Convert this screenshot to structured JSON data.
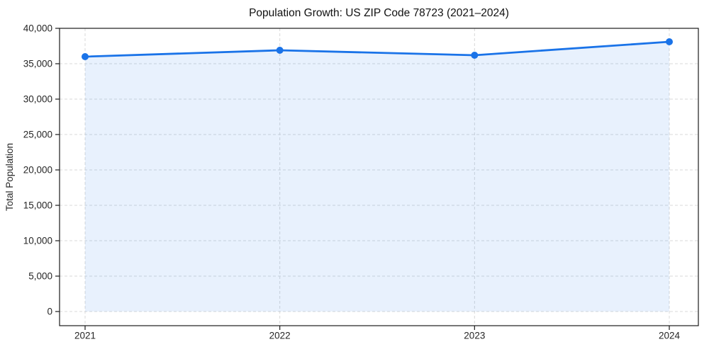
{
  "chart_data": {
    "type": "area",
    "title": "Population Growth: US ZIP Code 78723 (2021–2024)",
    "xlabel": "",
    "ylabel": "Total Population",
    "categories": [
      "2021",
      "2022",
      "2023",
      "2024"
    ],
    "series": [
      {
        "name": "Total Population",
        "values": [
          36000,
          36900,
          36200,
          38100
        ]
      }
    ],
    "ylim": [
      0,
      40000
    ],
    "yticks": [
      0,
      5000,
      10000,
      15000,
      20000,
      25000,
      30000,
      35000,
      40000
    ],
    "ytick_labels": [
      "0",
      "5,000",
      "10,000",
      "15,000",
      "20,000",
      "25,000",
      "30,000",
      "35,000",
      "40,000"
    ],
    "grid": true,
    "grid_style": "dashed",
    "legend_position": "none",
    "marker": "circle",
    "colors": {
      "line": "#1a73e8",
      "marker": "#1a73e8",
      "fill": "#1a73e8",
      "fill_opacity": 0.1,
      "grid": "#d8d8d8",
      "spine": "#1a1a1a",
      "tick_text": "#262626",
      "title_text": "#111111",
      "background": "#ffffff"
    }
  }
}
